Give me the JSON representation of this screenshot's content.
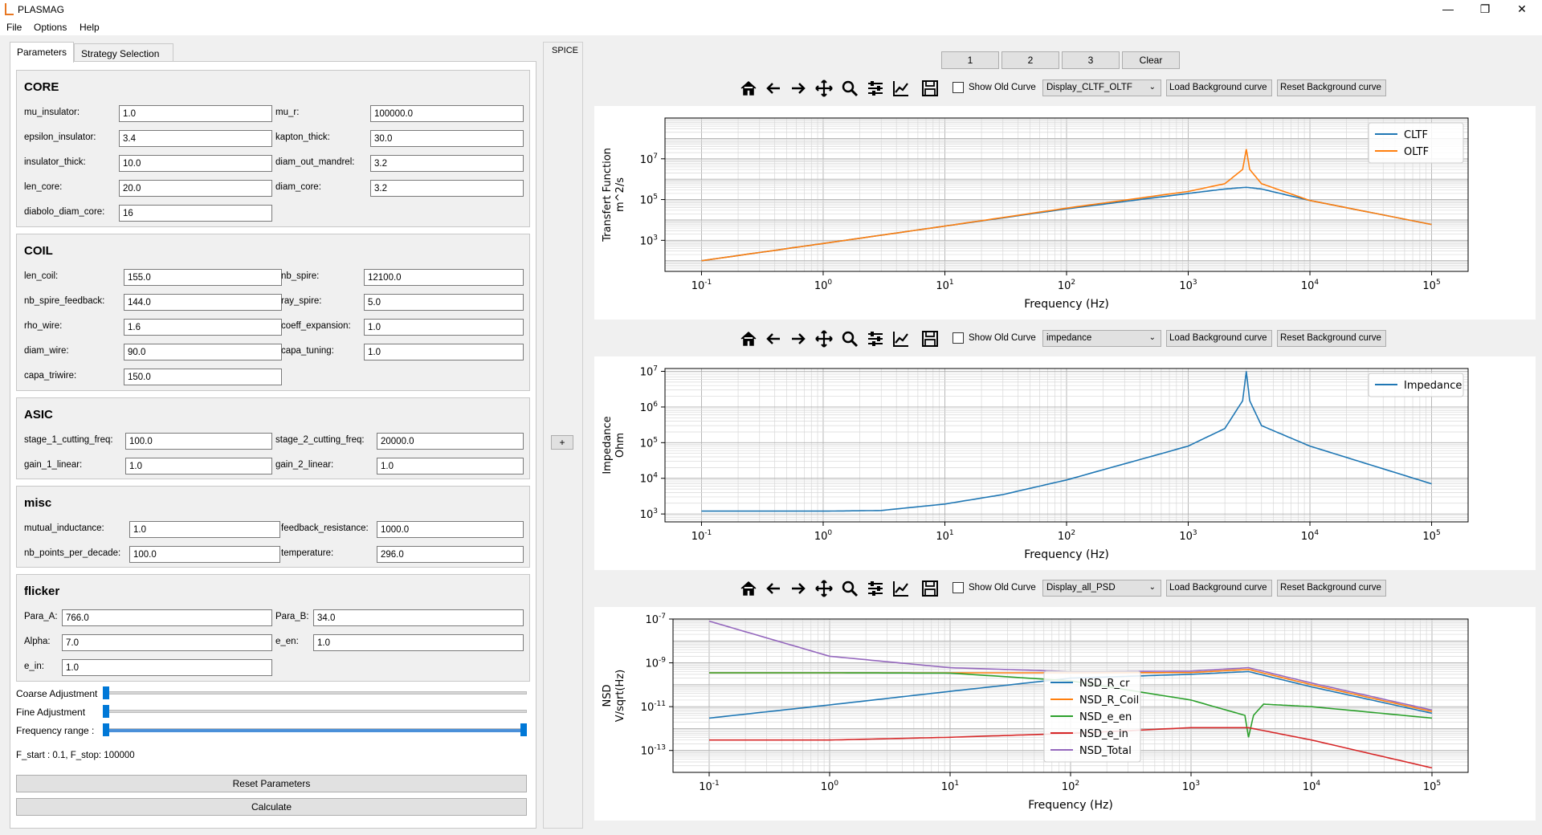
{
  "window": {
    "title": "PLASMAG",
    "minimize": "—",
    "maximize": "❐",
    "close": "✕"
  },
  "menu": [
    "File",
    "Options",
    "Help"
  ],
  "tabs": [
    "Parameters",
    "Strategy Selection"
  ],
  "core": {
    "title": "CORE",
    "fields": [
      {
        "label": "mu_insulator:",
        "value": "1.0"
      },
      {
        "label": "mu_r:",
        "value": "100000.0"
      },
      {
        "label": "epsilon_insulator:",
        "value": "3.4"
      },
      {
        "label": "kapton_thick:",
        "value": "30.0"
      },
      {
        "label": "insulator_thick:",
        "value": "10.0"
      },
      {
        "label": "diam_out_mandrel:",
        "value": "3.2"
      },
      {
        "label": "len_core:",
        "value": "20.0"
      },
      {
        "label": "diam_core:",
        "value": "3.2"
      },
      {
        "label": "diabolo_diam_core:",
        "value": "16"
      }
    ]
  },
  "coil": {
    "title": "COIL",
    "fields": [
      {
        "label": "len_coil:",
        "value": "155.0"
      },
      {
        "label": "nb_spire:",
        "value": "12100.0"
      },
      {
        "label": "nb_spire_feedback:",
        "value": "144.0"
      },
      {
        "label": "ray_spire:",
        "value": "5.0"
      },
      {
        "label": "rho_wire:",
        "value": "1.6"
      },
      {
        "label": "coeff_expansion:",
        "value": "1.0"
      },
      {
        "label": "diam_wire:",
        "value": "90.0"
      },
      {
        "label": "capa_tuning:",
        "value": "1.0"
      },
      {
        "label": "capa_triwire:",
        "value": "150.0"
      }
    ]
  },
  "asic": {
    "title": "ASIC",
    "fields": [
      {
        "label": "stage_1_cutting_freq:",
        "value": "100.0"
      },
      {
        "label": "stage_2_cutting_freq:",
        "value": "20000.0"
      },
      {
        "label": "gain_1_linear:",
        "value": "1.0"
      },
      {
        "label": "gain_2_linear:",
        "value": "1.0"
      }
    ]
  },
  "misc": {
    "title": "misc",
    "fields": [
      {
        "label": "mutual_inductance:",
        "value": "1.0"
      },
      {
        "label": "feedback_resistance:",
        "value": "1000.0"
      },
      {
        "label": "nb_points_per_decade:",
        "value": "100.0"
      },
      {
        "label": "temperature:",
        "value": "296.0"
      }
    ]
  },
  "flicker": {
    "title": "flicker",
    "fields": [
      {
        "label": "Para_A:",
        "value": "766.0"
      },
      {
        "label": "Para_B:",
        "value": "34.0"
      },
      {
        "label": "Alpha:",
        "value": "7.0"
      },
      {
        "label": "e_en:",
        "value": "1.0"
      },
      {
        "label": "e_in:",
        "value": "1.0"
      }
    ]
  },
  "sliders": {
    "coarse_label": "Coarse Adjustment",
    "fine_label": "Fine Adjustment",
    "freq_label": "Frequency range :",
    "coarse_level": 0.0,
    "fine_level": 0.0,
    "freq_range": [
      0.0,
      1.0
    ]
  },
  "freq_status": "F_start : 0.1, F_stop: 100000",
  "buttons": {
    "reset": "Reset Parameters",
    "calculate": "Calculate"
  },
  "spice": {
    "label": "SPICE",
    "plus": "+"
  },
  "top_buttons": [
    "1",
    "2",
    "3",
    "Clear"
  ],
  "plot_toolbar": {
    "show_old_curve": "Show Old Curve",
    "load_bg": "Load Background curve",
    "reset_bg": "Reset Background curve"
  },
  "plots": [
    {
      "combo": "Display_CLTF_OLTF"
    },
    {
      "combo": "impedance"
    },
    {
      "combo": "Display_all_PSD"
    }
  ],
  "chart_data": [
    {
      "type": "line",
      "xscale": "log",
      "yscale": "log",
      "xlabel": "Frequency (Hz)",
      "ylabel": "Transfert Function\nm^2/s",
      "xlim": [
        0.1,
        100000
      ],
      "ylim": [
        30,
        1000000000
      ],
      "xticks": [
        "10^-1",
        "10^0",
        "10^1",
        "10^2",
        "10^3",
        "10^4",
        "10^5"
      ],
      "yticks": [
        "10^3",
        "10^5",
        "10^7"
      ],
      "legend": "top-right",
      "grid": true,
      "series": [
        {
          "name": "CLTF",
          "color": "#1f77b4",
          "x": [
            0.1,
            1,
            10,
            100,
            1000,
            2000,
            3000,
            4000,
            10000,
            100000
          ],
          "y": [
            100,
            700,
            5000,
            35000,
            200000,
            330000,
            400000,
            330000,
            90000,
            6000
          ]
        },
        {
          "name": "OLTF",
          "color": "#ff7f0e",
          "x": [
            0.1,
            1,
            10,
            100,
            1000,
            2000,
            2800,
            3000,
            3200,
            4000,
            10000,
            100000
          ],
          "y": [
            100,
            700,
            5000,
            38000,
            250000,
            600000,
            3000000,
            30000000,
            3000000,
            600000,
            90000,
            6000
          ]
        }
      ]
    },
    {
      "type": "line",
      "xscale": "log",
      "yscale": "log",
      "xlabel": "Frequency (Hz)",
      "ylabel": "Impedance\nOhm",
      "xlim": [
        0.1,
        100000
      ],
      "ylim": [
        600,
        12000000
      ],
      "xticks": [
        "10^-1",
        "10^0",
        "10^1",
        "10^2",
        "10^3",
        "10^4",
        "10^5"
      ],
      "yticks": [
        "10^3",
        "10^4",
        "10^5",
        "10^6",
        "10^7"
      ],
      "legend": "top-right",
      "grid": true,
      "series": [
        {
          "name": "Impedance",
          "color": "#1f77b4",
          "x": [
            0.1,
            1,
            3,
            10,
            30,
            100,
            1000,
            2000,
            2800,
            3000,
            3200,
            4000,
            10000,
            100000
          ],
          "y": [
            1200,
            1200,
            1250,
            1900,
            3500,
            9000,
            80000,
            250000,
            1500000,
            10000000,
            1500000,
            300000,
            80000,
            7000
          ]
        }
      ]
    },
    {
      "type": "line",
      "xscale": "log",
      "yscale": "log",
      "xlabel": "Frequency (Hz)",
      "ylabel": "NSD\nV/sqrt(Hz)",
      "xlim": [
        0.1,
        100000
      ],
      "ylim": [
        1e-14,
        1e-07
      ],
      "xticks": [
        "10^-1",
        "10^0",
        "10^1",
        "10^2",
        "10^3",
        "10^4",
        "10^5"
      ],
      "yticks": [
        "10^-13",
        "10^-11",
        "10^-9",
        "10^-7"
      ],
      "legend": "center",
      "grid": true,
      "series": [
        {
          "name": "NSD_R_cr",
          "color": "#1f77b4",
          "x": [
            0.1,
            1,
            10,
            100,
            1000,
            3000,
            10000,
            100000
          ],
          "y": [
            3e-12,
            1.2e-11,
            5e-11,
            2e-10,
            3e-10,
            4e-10,
            8e-11,
            5e-12
          ]
        },
        {
          "name": "NSD_R_Coil",
          "color": "#ff7f0e",
          "x": [
            0.1,
            1,
            10,
            100,
            1000,
            3000,
            10000,
            100000
          ],
          "y": [
            3.5e-10,
            3.5e-10,
            3.5e-10,
            3.5e-10,
            3.6e-10,
            5e-10,
            1e-10,
            6e-12
          ]
        },
        {
          "name": "NSD_e_en",
          "color": "#2ca02c",
          "x": [
            0.1,
            1,
            10,
            100,
            1000,
            2800,
            3000,
            3300,
            4000,
            10000,
            100000
          ],
          "y": [
            3.5e-10,
            3.5e-10,
            3.4e-10,
            1.5e-10,
            2e-11,
            4e-12,
            4e-13,
            4e-12,
            1.3e-11,
            1e-11,
            3e-12
          ]
        },
        {
          "name": "NSD_e_in",
          "color": "#d62728",
          "x": [
            0.1,
            1,
            10,
            100,
            1000,
            3000,
            10000,
            100000
          ],
          "y": [
            3e-13,
            3e-13,
            4e-13,
            6e-13,
            1.1e-12,
            1.1e-12,
            3e-13,
            1.6e-14
          ]
        },
        {
          "name": "NSD_Total",
          "color": "#9467bd",
          "x": [
            0.1,
            1,
            10,
            100,
            1000,
            3000,
            10000,
            100000
          ],
          "y": [
            8e-08,
            2e-09,
            6e-10,
            4e-10,
            4.2e-10,
            6e-10,
            1.2e-10,
            7e-12
          ]
        }
      ]
    }
  ]
}
